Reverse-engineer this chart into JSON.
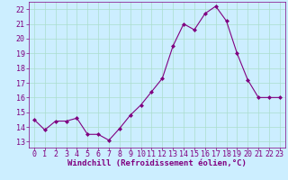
{
  "x": [
    0,
    1,
    2,
    3,
    4,
    5,
    6,
    7,
    8,
    9,
    10,
    11,
    12,
    13,
    14,
    15,
    16,
    17,
    18,
    19,
    20,
    21,
    22,
    23
  ],
  "y": [
    14.5,
    13.8,
    14.4,
    14.4,
    14.6,
    13.5,
    13.5,
    13.1,
    13.9,
    14.8,
    15.5,
    16.4,
    17.3,
    19.5,
    21.0,
    20.6,
    21.7,
    22.2,
    21.2,
    19.0,
    17.2,
    16.0,
    16.0,
    16.0
  ],
  "line_color": "#800080",
  "marker_color": "#800080",
  "bg_color": "#cceeff",
  "grid_color": "#aaddcc",
  "xlabel": "Windchill (Refroidissement éolien,°C)",
  "xlim": [
    -0.5,
    23.5
  ],
  "ylim": [
    12.6,
    22.5
  ],
  "yticks": [
    13,
    14,
    15,
    16,
    17,
    18,
    19,
    20,
    21,
    22
  ],
  "xticks": [
    0,
    1,
    2,
    3,
    4,
    5,
    6,
    7,
    8,
    9,
    10,
    11,
    12,
    13,
    14,
    15,
    16,
    17,
    18,
    19,
    20,
    21,
    22,
    23
  ],
  "tick_color": "#800080",
  "label_color": "#800080",
  "font_size": 6,
  "xlabel_fontsize": 6.5,
  "marker_size": 2.0,
  "linewidth": 0.8
}
